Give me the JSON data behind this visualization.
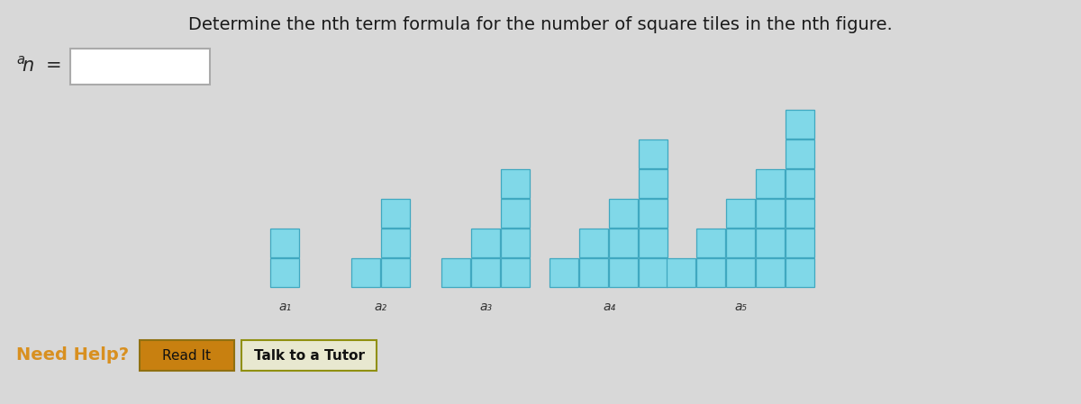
{
  "title": "Determine the nth term formula for the number of square tiles in the nth figure.",
  "bg_color": "#d8d8d8",
  "tile_fill": "#80d8e8",
  "tile_edge": "#40a8c0",
  "figures": [
    {
      "label": "a₁",
      "columns": [
        2
      ]
    },
    {
      "label": "a₂",
      "columns": [
        1,
        3
      ]
    },
    {
      "label": "a₃",
      "columns": [
        1,
        2,
        4
      ]
    },
    {
      "label": "a₄",
      "columns": [
        1,
        2,
        3,
        5
      ]
    },
    {
      "label": "a₅",
      "columns": [
        1,
        2,
        3,
        4,
        6
      ]
    }
  ],
  "need_help_color": "#d89020",
  "read_it_text": "Read It",
  "talk_tutor_text": "Talk to a Tutor"
}
